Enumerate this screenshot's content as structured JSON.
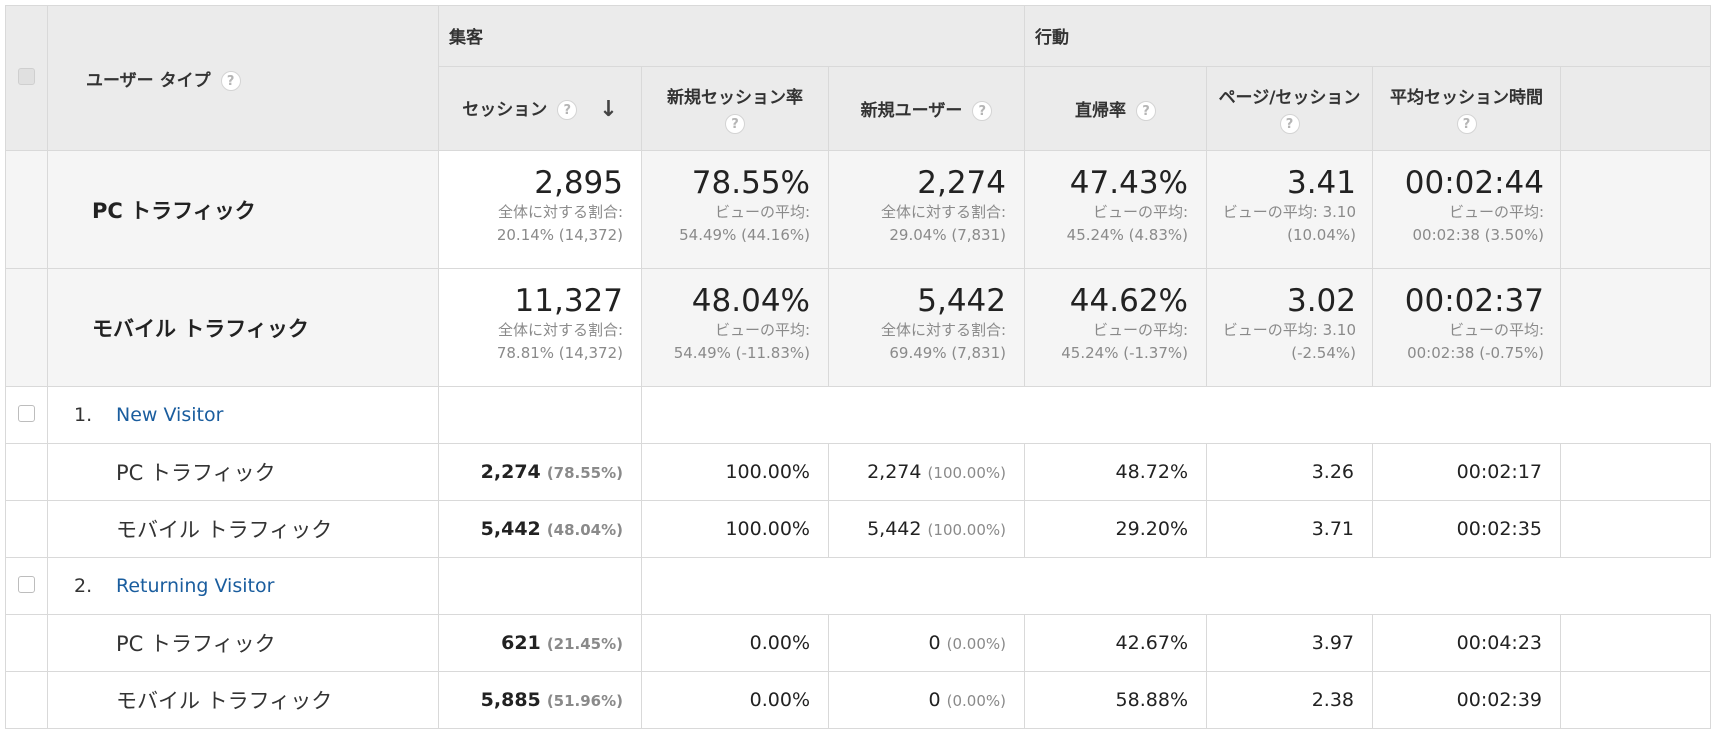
{
  "header": {
    "user_type_label": "ユーザー タイプ",
    "group_acquisition": "集客",
    "group_behavior": "行動",
    "columns": [
      "セッション",
      "新規セッション率",
      "新規ユーザー",
      "直帰率",
      "ページ/セッション",
      "平均セッション時間"
    ],
    "help_glyph": "?",
    "sort_glyph": "↓"
  },
  "summary": [
    {
      "label": "PC トラフィック",
      "cells": [
        {
          "big": "2,895",
          "sub1": "全体に対する割合:",
          "sub2": "20.14% (14,372)"
        },
        {
          "big": "78.55%",
          "sub1": "ビューの平均:",
          "sub2": "54.49% (44.16%)"
        },
        {
          "big": "2,274",
          "sub1": "全体に対する割合:",
          "sub2": "29.04% (7,831)"
        },
        {
          "big": "47.43%",
          "sub1": "ビューの平均:",
          "sub2": "45.24% (4.83%)"
        },
        {
          "big": "3.41",
          "sub1": "ビューの平均: 3.10",
          "sub2": "(10.04%)"
        },
        {
          "big": "00:02:44",
          "sub1": "ビューの平均:",
          "sub2": "00:02:38 (3.50%)"
        }
      ]
    },
    {
      "label": "モバイル トラフィック",
      "cells": [
        {
          "big": "11,327",
          "sub1": "全体に対する割合:",
          "sub2": "78.81% (14,372)"
        },
        {
          "big": "48.04%",
          "sub1": "ビューの平均:",
          "sub2": "54.49% (-11.83%)"
        },
        {
          "big": "5,442",
          "sub1": "全体に対する割合:",
          "sub2": "69.49% (7,831)"
        },
        {
          "big": "44.62%",
          "sub1": "ビューの平均:",
          "sub2": "45.24% (-1.37%)"
        },
        {
          "big": "3.02",
          "sub1": "ビューの平均: 3.10",
          "sub2": "(-2.54%)"
        },
        {
          "big": "00:02:37",
          "sub1": "ビューの平均:",
          "sub2": "00:02:38 (-0.75%)"
        }
      ]
    }
  ],
  "groups": [
    {
      "index": "1.",
      "name": "New Visitor",
      "rows": [
        {
          "label": "PC トラフィック",
          "sessions": "2,274",
          "sessions_pct": "(78.55%)",
          "new_rate": "100.00%",
          "new_users": "2,274",
          "new_users_pct": "(100.00%)",
          "bounce": "48.72%",
          "pages": "3.26",
          "duration": "00:02:17"
        },
        {
          "label": "モバイル トラフィック",
          "sessions": "5,442",
          "sessions_pct": "(48.04%)",
          "new_rate": "100.00%",
          "new_users": "5,442",
          "new_users_pct": "(100.00%)",
          "bounce": "29.20%",
          "pages": "3.71",
          "duration": "00:02:35"
        }
      ]
    },
    {
      "index": "2.",
      "name": "Returning Visitor",
      "rows": [
        {
          "label": "PC トラフィック",
          "sessions": "621",
          "sessions_pct": "(21.45%)",
          "new_rate": "0.00%",
          "new_users": "0",
          "new_users_pct": "(0.00%)",
          "bounce": "42.67%",
          "pages": "3.97",
          "duration": "00:04:23"
        },
        {
          "label": "モバイル トラフィック",
          "sessions": "5,885",
          "sessions_pct": "(51.96%)",
          "new_rate": "0.00%",
          "new_users": "0",
          "new_users_pct": "(0.00%)",
          "bounce": "58.88%",
          "pages": "2.38",
          "duration": "00:02:39"
        }
      ]
    }
  ]
}
